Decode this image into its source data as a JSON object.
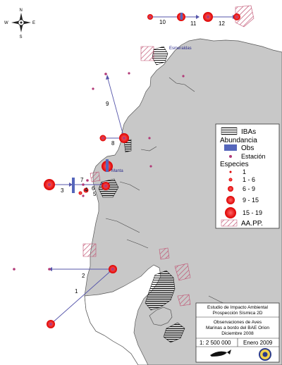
{
  "compass": {
    "n": "N",
    "s": "S",
    "e": "E",
    "w": "W"
  },
  "cities": [
    {
      "name": "Esmeraldas"
    },
    {
      "name": "Manta"
    }
  ],
  "route_labels": [
    "1",
    "2",
    "3",
    "4",
    "5",
    "6",
    "7",
    "8",
    "9",
    "10",
    "11",
    "12"
  ],
  "legend": {
    "ibas": "IBAs",
    "abundancia": "Abundancia",
    "obs": "Obs",
    "estacion": "Estación",
    "especies": "Especies",
    "classes": [
      "1",
      "1 - 6",
      "6 - 9",
      "9 - 15",
      "15 - 19"
    ],
    "aapp": "AA.PP."
  },
  "info": {
    "line1": "Estudio de Impacto Ambiental",
    "line2": "Prospección Sísmica 2D",
    "line3": "Observaciones de Aves",
    "line4": "Marinas a bordo del BAE Orion",
    "line5": "Diciembre 2008",
    "scale": "1: 2 500 000",
    "date": "Enero 2009"
  },
  "colors": {
    "land": "#c8c8c8",
    "coast": "#555555",
    "station": "#ee1111",
    "dot": "#b23a78",
    "route": "#5555aa",
    "obs": "#5566bb",
    "hatch": "#c05070"
  }
}
